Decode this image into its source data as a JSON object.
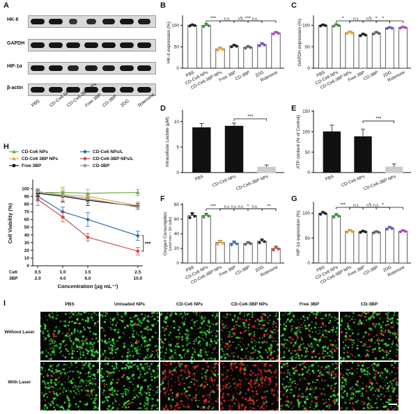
{
  "panel_letters": [
    "A",
    "B",
    "C",
    "D",
    "E",
    "F",
    "G",
    "H",
    "I"
  ],
  "blot": {
    "proteins": [
      "HK-II",
      "GAPDH",
      "HIF-1α",
      "β-actin"
    ],
    "lanes": [
      "PBS",
      "CD-Ce6 NPs",
      "CD-Ce6-3BP NPs",
      "Free 3BP",
      "CD-3BP",
      "2DG",
      "Rotenone"
    ],
    "colors": {
      "band": "#151515",
      "background": "#d9d9d9"
    }
  },
  "microscopy": {
    "columns": [
      "PBS",
      "Unloaded NPs",
      "CD-Ce6 NPs",
      "CD-Ce6-3BP NPs",
      "Free 3BP",
      "CD-3BP"
    ],
    "rows": [
      "Without Laser",
      "With Laser"
    ],
    "colors": {
      "live": "#3adf3a",
      "dead": "#e02a2a",
      "background": "#050505"
    }
  },
  "chart_data": [
    {
      "id": "B",
      "type": "bar",
      "ylabel": "HK-II expression (%)",
      "categories": [
        "PBS",
        "CD-Ce6 NPs",
        "CD-Ce6-3BP NPs",
        "Free 3BP",
        "CD-3BP",
        "2DG",
        "Rotenone"
      ],
      "values": [
        100,
        100,
        45,
        52,
        49,
        55,
        82
      ],
      "errors": [
        2,
        4,
        4,
        3,
        3,
        4,
        3
      ],
      "ylim": [
        0,
        120
      ],
      "yticks": [
        0,
        50,
        100
      ],
      "bar_colors": [
        "#222222",
        "#3a9a3a",
        "#e8a83a",
        "#222222",
        "#666666",
        "#7a4fd0",
        "#b04fc0"
      ],
      "significance": [
        {
          "from": 1,
          "to": 2,
          "label": "***"
        },
        {
          "from": 2,
          "to": 6,
          "label": "***"
        },
        {
          "from": 2,
          "to": 5,
          "label": "*"
        },
        {
          "from": 2,
          "to": 3,
          "label": "n.s."
        },
        {
          "from": 3,
          "to": 4,
          "label": "n.s."
        },
        {
          "from": 4,
          "to": 5,
          "label": "n.s."
        }
      ]
    },
    {
      "id": "C",
      "type": "bar",
      "ylabel": "GAPDH expression (%)",
      "categories": [
        "PBS",
        "CD-Ce6 NPs",
        "CD-Ce6-3BP NPs",
        "Free 3BP",
        "CD-3BP",
        "2DG",
        "Rotenone"
      ],
      "values": [
        100,
        100,
        83,
        78,
        82,
        94,
        95
      ],
      "errors": [
        2,
        3,
        3,
        3,
        3,
        2,
        2
      ],
      "ylim": [
        0,
        120
      ],
      "yticks": [
        0,
        50,
        100
      ],
      "bar_colors": [
        "#222222",
        "#3a9a3a",
        "#e8a83a",
        "#222222",
        "#666666",
        "#7a4fd0",
        "#b04fc0"
      ],
      "significance": [
        {
          "from": 1,
          "to": 2,
          "label": "*"
        },
        {
          "from": 2,
          "to": 6,
          "label": "*"
        },
        {
          "from": 2,
          "to": 5,
          "label": "*"
        },
        {
          "from": 4,
          "to": 5,
          "label": "*"
        },
        {
          "from": 2,
          "to": 3,
          "label": "n.s."
        },
        {
          "from": 3,
          "to": 4,
          "label": "n.s."
        }
      ]
    },
    {
      "id": "D",
      "type": "bar",
      "ylabel": "Intracellular Lactate (μM)",
      "categories": [
        "PBS",
        "CD-Ce6 NPs",
        "CD-Ce6-3BP NPs"
      ],
      "values": [
        8.8,
        9.1,
        1.1
      ],
      "errors": [
        0.8,
        0.6,
        0.4
      ],
      "ylim": [
        0,
        12
      ],
      "yticks": [
        0,
        5,
        10
      ],
      "bar_colors": [
        "#111111",
        "#111111",
        "#cccccc"
      ],
      "significance": [
        {
          "from": 1,
          "to": 2,
          "label": "***"
        }
      ]
    },
    {
      "id": "E",
      "type": "bar",
      "ylabel": "ATP content (% of Control)",
      "categories": [
        "PBS",
        "CD-Ce6 NPs",
        "CD-Ce6-3BP NPs"
      ],
      "values": [
        100,
        88,
        14
      ],
      "errors": [
        16,
        18,
        7
      ],
      "ylim": [
        0,
        150
      ],
      "yticks": [
        0,
        50,
        100,
        150
      ],
      "bar_colors": [
        "#111111",
        "#111111",
        "#cccccc"
      ],
      "significance": [
        {
          "from": 1,
          "to": 2,
          "label": "***"
        }
      ]
    },
    {
      "id": "F",
      "type": "bar",
      "ylabel": "Oxygen Consumption",
      "ylabel2": "(nmol·min⁻¹·10⁶ cells)",
      "categories": [
        "PBS",
        "CD-Ce6 NPs",
        "CD-Ce6-3BP NPs",
        "Free 3BP",
        "CD-3BP",
        "2DG",
        "Rotenone"
      ],
      "values": [
        65,
        65,
        28,
        27,
        27,
        30,
        20
      ],
      "errors": [
        4,
        3,
        3,
        3,
        2,
        3,
        3
      ],
      "ylim": [
        0,
        80
      ],
      "yticks": [
        0,
        20,
        40,
        60,
        80
      ],
      "bar_colors": [
        "#222222",
        "#3a9a3a",
        "#e8a83a",
        "#3a7ac0",
        "#666666",
        "#333333",
        "#c84a4a"
      ],
      "significance": [
        {
          "from": 1,
          "to": 2,
          "label": "***"
        },
        {
          "from": 2,
          "to": 6,
          "label": "*"
        },
        {
          "from": 2,
          "to": 4,
          "label": "n.s."
        },
        {
          "from": 2,
          "to": 3,
          "label": "n.s."
        },
        {
          "from": 3,
          "to": 4,
          "label": "n.s."
        },
        {
          "from": 4,
          "to": 5,
          "label": "n.s."
        },
        {
          "from": 5,
          "to": 6,
          "label": "**"
        }
      ]
    },
    {
      "id": "G",
      "type": "bar",
      "ylabel": "HIF-1α expression (%)",
      "categories": [
        "PBS",
        "CD-Ce6 NPs",
        "CD-Ce6-3BP NPs",
        "Free 3BP",
        "CD-3BP",
        "2DG",
        "Rotenone"
      ],
      "values": [
        100,
        95,
        64,
        63,
        62,
        70,
        64
      ],
      "errors": [
        3,
        4,
        3,
        2,
        2,
        3,
        2
      ],
      "ylim": [
        0,
        120
      ],
      "yticks": [
        0,
        50,
        100
      ],
      "bar_colors": [
        "#222222",
        "#3a9a3a",
        "#e8a83a",
        "#222222",
        "#666666",
        "#7a4fd0",
        "#b04fc0"
      ],
      "significance": [
        {
          "from": 1,
          "to": 2,
          "label": "***"
        },
        {
          "from": 2,
          "to": 6,
          "label": "n.s."
        },
        {
          "from": 2,
          "to": 5,
          "label": "*"
        },
        {
          "from": 2,
          "to": 3,
          "label": "n.s."
        },
        {
          "from": 3,
          "to": 4,
          "label": "n.s."
        },
        {
          "from": 4,
          "to": 5,
          "label": "*"
        }
      ]
    },
    {
      "id": "H",
      "type": "line",
      "ylabel": "Cell Viability (%)",
      "xlabel": "Concentration (μg mL⁻¹)",
      "x": [
        0.5,
        1.0,
        1.5,
        2.5
      ],
      "x_tick_labels_ce6": [
        "0.5",
        "1.0",
        "1.5",
        "2.5"
      ],
      "x_tick_labels_3bp": [
        "2.0",
        "4.0",
        "6.0",
        "10.0"
      ],
      "x_row_label_ce6": "Ce6",
      "x_row_label_3bp": "3BP",
      "ylim": [
        0,
        110
      ],
      "yticks": [
        0,
        10,
        20,
        30,
        40,
        50,
        60,
        70,
        80,
        90,
        100
      ],
      "series": [
        {
          "name": "CD-Ce6 NPs",
          "values": [
            95,
            95,
            94,
            95
          ],
          "errors": [
            4,
            5,
            5,
            4
          ],
          "color": "#6ab04c",
          "marker": "triangle"
        },
        {
          "name": "CD-Ce6 NPs/L",
          "values": [
            90,
            70,
            60,
            39
          ],
          "errors": [
            6,
            6,
            9,
            6
          ],
          "color": "#2a6fa8",
          "marker": "diamond"
        },
        {
          "name": "CD-Ce6 3BP NPs",
          "values": [
            96,
            92,
            90,
            78
          ],
          "errors": [
            4,
            10,
            9,
            5
          ],
          "color": "#e8a83a",
          "marker": "triangle"
        },
        {
          "name": "CD-Ce6-3BP NPs/L",
          "values": [
            86,
            63,
            37,
            19
          ],
          "errors": [
            8,
            6,
            5,
            5
          ],
          "color": "#d05050",
          "marker": "circle"
        },
        {
          "name": "Free 3BP",
          "values": [
            94,
            90,
            85,
            77
          ],
          "errors": [
            4,
            7,
            7,
            4
          ],
          "color": "#111111",
          "marker": "circle"
        },
        {
          "name": "CD-3BP",
          "values": [
            96,
            91,
            87,
            76
          ],
          "errors": [
            4,
            6,
            5,
            3
          ],
          "color": "#999999",
          "marker": "circle"
        }
      ],
      "significance_label": "***"
    }
  ]
}
